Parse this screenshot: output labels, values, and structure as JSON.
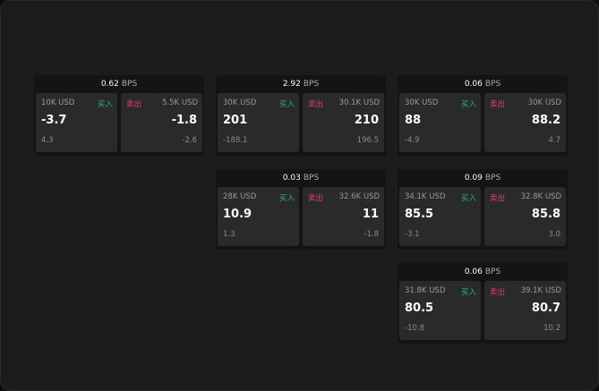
{
  "colors": {
    "buy": "#2fb36a",
    "sell": "#e0406e"
  },
  "unit": "BPS",
  "cards": [
    {
      "spread": "0.62",
      "bid": {
        "size": "10K USD",
        "label": "买入",
        "price": "-3.7",
        "change": "4.3"
      },
      "ask": {
        "size": "5.5K USD",
        "label": "卖出",
        "price": "-1.8",
        "change": "-2.6"
      }
    },
    {
      "spread": "2.92",
      "bid": {
        "size": "30K USD",
        "label": "买入",
        "price": "201",
        "change": "-188.1"
      },
      "ask": {
        "size": "30.1K USD",
        "label": "卖出",
        "price": "210",
        "change": "196.5"
      }
    },
    {
      "spread": "0.06",
      "bid": {
        "size": "30K USD",
        "label": "买入",
        "price": "88",
        "change": "-4.9"
      },
      "ask": {
        "size": "30K USD",
        "label": "卖出",
        "price": "88.2",
        "change": "4.7"
      }
    },
    {
      "spread": "0.03",
      "bid": {
        "size": "28K USD",
        "label": "买入",
        "price": "10.9",
        "change": "1.3"
      },
      "ask": {
        "size": "32.6K USD",
        "label": "卖出",
        "price": "11",
        "change": "-1.8"
      }
    },
    {
      "spread": "0.09",
      "bid": {
        "size": "34.1K USD",
        "label": "买入",
        "price": "85.5",
        "change": "-3.1"
      },
      "ask": {
        "size": "32.8K USD",
        "label": "卖出",
        "price": "85.8",
        "change": "3.0"
      }
    },
    {
      "spread": "0.06",
      "bid": {
        "size": "31.8K USD",
        "label": "买入",
        "price": "80.5",
        "change": "-10.8"
      },
      "ask": {
        "size": "39.1K USD",
        "label": "卖出",
        "price": "80.7",
        "change": "10.2"
      }
    }
  ]
}
